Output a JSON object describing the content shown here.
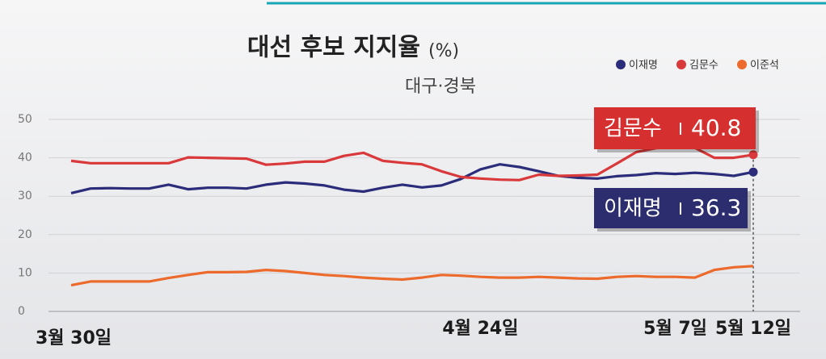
{
  "chart_data": {
    "type": "line",
    "title": "대선 후보 지지율",
    "unit": "(%)",
    "subtitle": "대구·경북",
    "categories": [
      "3월 30일",
      null,
      null,
      null,
      null,
      null,
      null,
      null,
      null,
      null,
      null,
      null,
      null,
      null,
      null,
      null,
      null,
      null,
      null,
      null,
      null,
      "4월 24일",
      null,
      null,
      null,
      null,
      null,
      null,
      null,
      null,
      null,
      "5월 7일",
      null,
      null,
      null,
      "5월 12일"
    ],
    "series": [
      {
        "name": "이재명",
        "color": "#2b2d7a",
        "values": [
          30.8,
          32.0,
          32.1,
          32.0,
          32.0,
          33.0,
          31.8,
          32.2,
          32.2,
          32.0,
          33.0,
          33.6,
          33.3,
          32.8,
          31.7,
          31.2,
          32.2,
          33.0,
          32.3,
          32.8,
          34.5,
          37.0,
          38.3,
          37.6,
          36.5,
          35.3,
          34.8,
          34.6,
          35.2,
          35.5,
          36.0,
          35.8,
          36.1,
          35.8,
          35.3,
          36.3
        ]
      },
      {
        "name": "김문수",
        "color": "#d9393a",
        "values": [
          39.2,
          38.6,
          38.6,
          38.6,
          38.6,
          38.6,
          40.1,
          40.0,
          39.9,
          39.8,
          38.2,
          38.5,
          39.0,
          39.0,
          40.5,
          41.3,
          39.2,
          38.7,
          38.3,
          36.5,
          35.0,
          34.6,
          34.3,
          34.2,
          35.6,
          35.3,
          35.4,
          35.6,
          38.5,
          41.5,
          42.5,
          42.8,
          42.6,
          40.0,
          40.0,
          40.8
        ]
      },
      {
        "name": "이준석",
        "color": "#ec6a2c",
        "values": [
          6.8,
          7.8,
          7.8,
          7.8,
          7.8,
          8.7,
          9.5,
          10.2,
          10.2,
          10.3,
          10.8,
          10.5,
          10.0,
          9.5,
          9.2,
          8.8,
          8.5,
          8.3,
          8.8,
          9.5,
          9.3,
          9.0,
          8.8,
          8.8,
          9.0,
          8.8,
          8.6,
          8.5,
          9.0,
          9.2,
          9.0,
          9.0,
          8.8,
          10.8,
          11.5,
          11.8
        ]
      }
    ],
    "ylim": [
      0,
      50
    ],
    "yticks": [
      0,
      10,
      20,
      30,
      40,
      50
    ],
    "grid": true,
    "legend": "top-right"
  }
}
